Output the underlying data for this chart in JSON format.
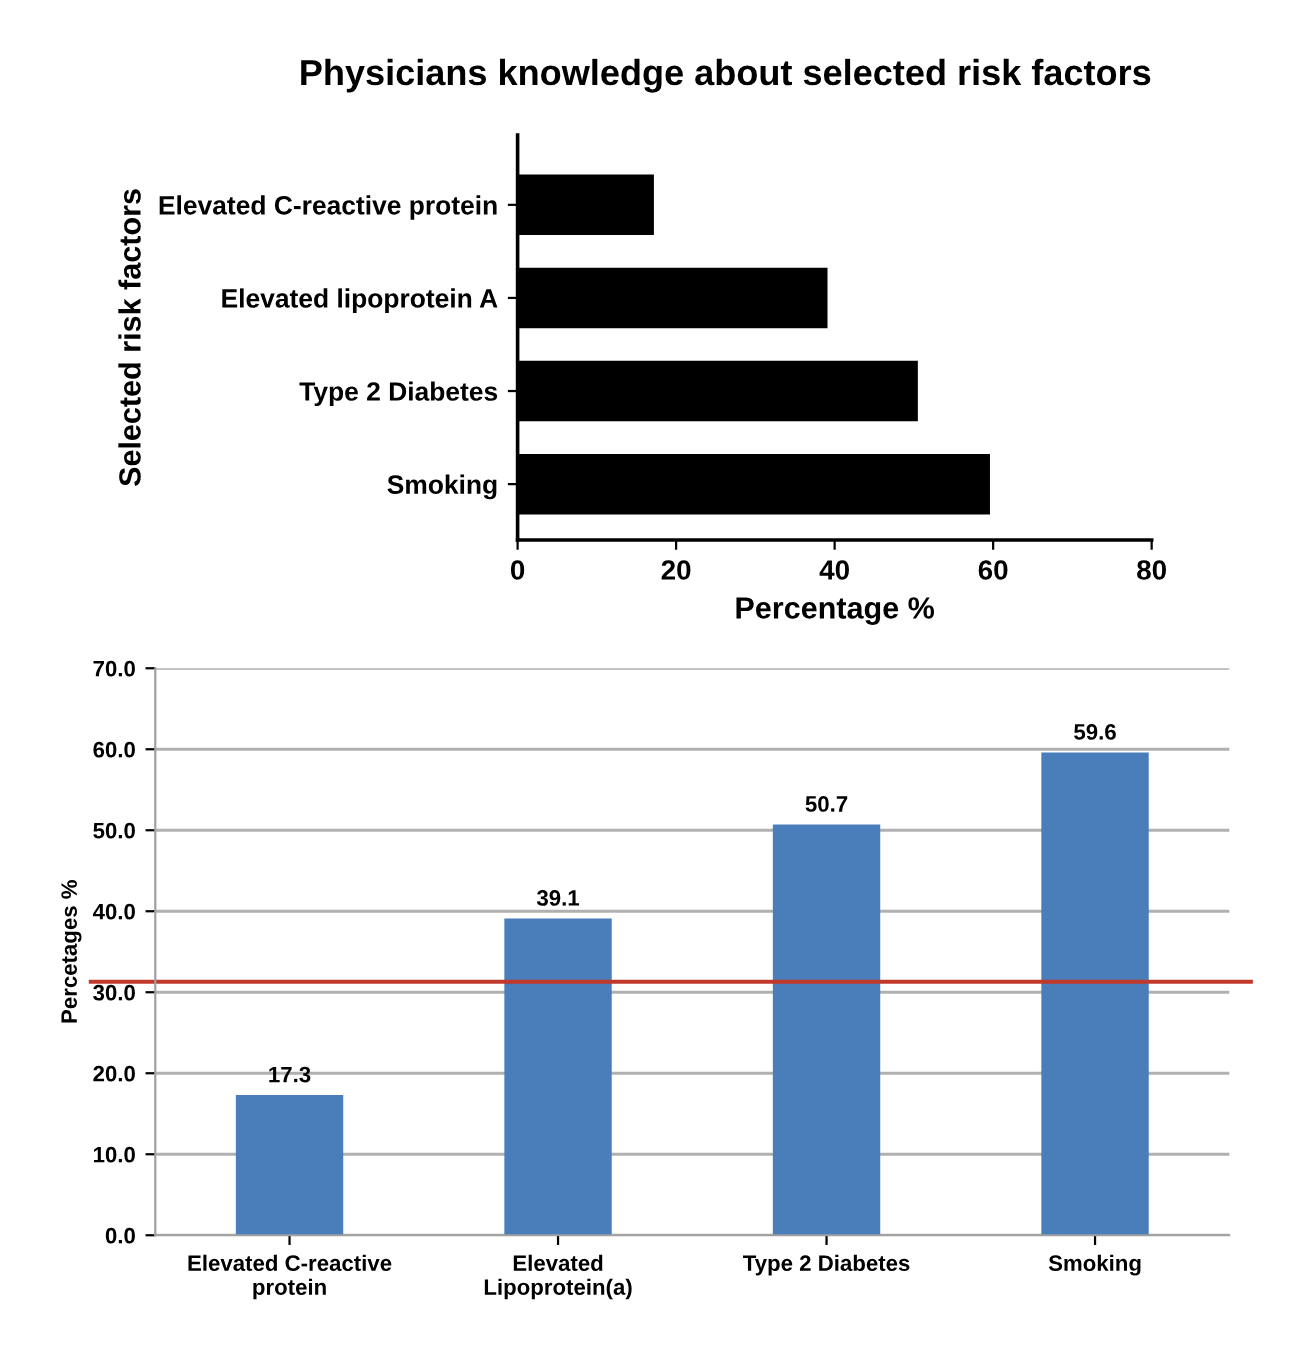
{
  "chart_data": [
    {
      "type": "bar",
      "orientation": "horizontal",
      "title": "Physicians knowledge about selected risk factors",
      "xlabel": "Percentage %",
      "ylabel": "Selected risk factors",
      "categories": [
        "Elevated C-reactive protein",
        "Elevated lipoprotein A",
        "Type 2 Diabetes",
        "Smoking"
      ],
      "series": [
        {
          "color": "#000000",
          "values": [
            17.2,
            39.1,
            50.5,
            59.6
          ]
        }
      ],
      "xlim": [
        0,
        80
      ],
      "xticks": [
        0,
        20,
        40,
        60,
        80
      ],
      "grid": false,
      "legend": false
    },
    {
      "type": "bar",
      "ylabel": "Percetages %",
      "categories": [
        "Elevated C-reactive\nprotein",
        "Elevated\nLipoprotein(a)",
        "Type 2 Diabetes",
        "Smoking"
      ],
      "series": [
        {
          "color": "#4a7ebb",
          "values": [
            17.3,
            39.1,
            50.7,
            59.6
          ]
        }
      ],
      "ylim": [
        0,
        70
      ],
      "yticks": [
        {
          "value": 0,
          "label": "0.0"
        },
        {
          "value": 10,
          "label": "10.0"
        },
        {
          "value": 20,
          "label": "20.0"
        },
        {
          "value": 30,
          "label": "30.0"
        },
        {
          "value": 40,
          "label": "40.0"
        },
        {
          "value": 50,
          "label": "50.0"
        },
        {
          "value": 60,
          "label": "60.0"
        },
        {
          "value": 70,
          "label": "70.0"
        }
      ],
      "grid": "y",
      "legend": false,
      "data_labels": true,
      "ref_lines": [
        {
          "axis": "y",
          "value": 31.3,
          "color": "#c0392b",
          "line_style": "solid"
        }
      ]
    }
  ]
}
